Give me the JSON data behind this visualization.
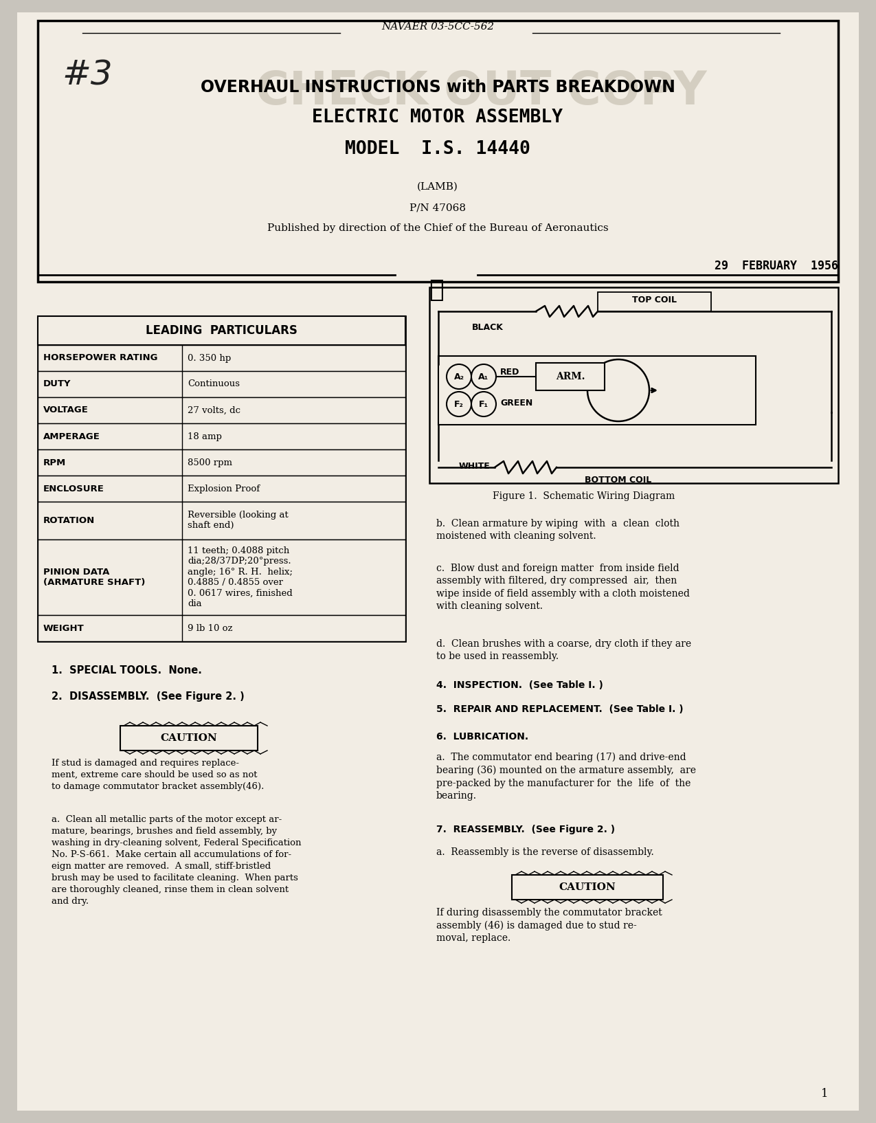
{
  "bg_color": "#c8c4bc",
  "page_color": "#f2ede4",
  "doc_num": "NAVAER 03-5CC-562",
  "title_line1": "OVERHAUL INSTRUCTIONS with PARTS BREAKDOWN",
  "title_line2": "ELECTRIC MOTOR ASSEMBLY",
  "title_line3": "MODEL  I.S. 14440",
  "subtitle1": "(LAMB)",
  "subtitle2": "P/N 47068",
  "subtitle3": "Published by direction of the Chief of the Bureau of Aeronautics",
  "date": "29  FEBRUARY  1956",
  "watermark": "CHECK OUT COPY",
  "table_title": "LEADING  PARTICULARS",
  "table_rows": [
    [
      "HORSEPOWER RATING",
      "0. 350 hp"
    ],
    [
      "DUTY",
      "Continuous"
    ],
    [
      "VOLTAGE",
      "27 volts, dc"
    ],
    [
      "AMPERAGE",
      "18 amp"
    ],
    [
      "RPM",
      "8500 rpm"
    ],
    [
      "ENCLOSURE",
      "Explosion Proof"
    ],
    [
      "ROTATION",
      "Reversible (looking at\nshaft end)"
    ],
    [
      "PINION DATA\n(ARMATURE SHAFT)",
      "11 teeth; 0.4088 pitch\ndia;28/37DP;20°press.\nangle; 16° R. H.  helix;\n0.4885 / 0.4855 over\n0. 0617 wires, finished\ndia"
    ],
    [
      "WEIGHT",
      "9 lb 10 oz"
    ]
  ],
  "section1": "1.  SPECIAL TOOLS.  None.",
  "section2": "2.  DISASSEMBLY.  (See Figure 2. )",
  "caution1_text": "If stud is damaged and requires replace-\nment, extreme care should be used so as not\nto damage commutator bracket assembly(46).",
  "section_a": "a.  Clean all metallic parts of the motor except ar-\nmature, bearings, brushes and field assembly, by\nwashing in dry-cleaning solvent, Federal Specification\nNo. P-S-661.  Make certain all accumulations of for-\neign matter are removed.  A small, stiff-bristled\nbrush may be used to facilitate cleaning.  When parts\nare thoroughly cleaned, rinse them in clean solvent\nand dry.",
  "fig1_caption": "Figure 1.  Schematic Wiring Diagram",
  "section_b": "b.  Clean armature by wiping  with  a  clean  cloth\nmoistened with cleaning solvent.",
  "section_c": "c.  Blow dust and foreign matter  from inside field\nassembly with filtered, dry compressed  air,  then\nwipe inside of field assembly with a cloth moistened\nwith cleaning solvent.",
  "section_d": "d.  Clean brushes with a coarse, dry cloth if they are\nto be used in reassembly.",
  "section4": "4.  INSPECTION.  (See Table I. )",
  "section5": "5.  REPAIR AND REPLACEMENT.  (See Table I. )",
  "section6_title": "6.  LUBRICATION.",
  "section6a": "a.  The commutator end bearing (17) and drive-end\nbearing (36) mounted on the armature assembly,  are\npre-packed by the manufacturer for  the  life  of  the\nbearing.",
  "section7_title": "7.  REASSEMBLY.  (See Figure 2. )",
  "section7a": "a.  Reassembly is the reverse of disassembly.",
  "caution2_text": "If during disassembly the commutator bracket\nassembly (46) is damaged due to stud re-\nmoval, replace.",
  "page_num": "1"
}
